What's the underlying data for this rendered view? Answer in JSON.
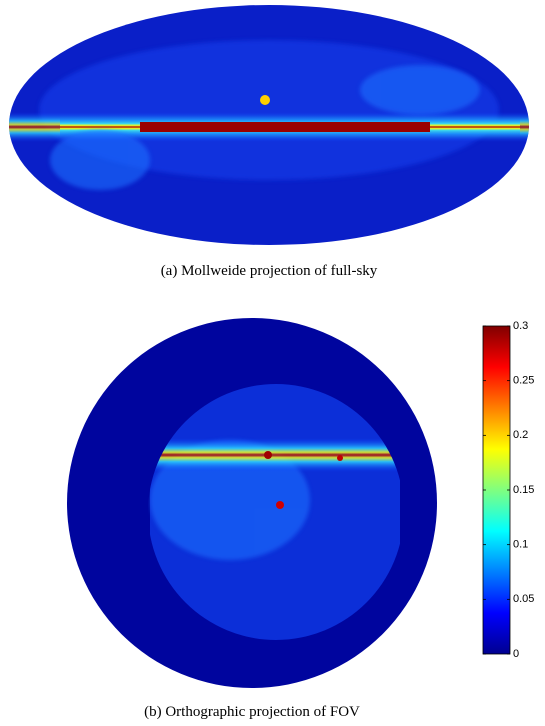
{
  "figures": [
    {
      "caption": "(a)  Mollweide projection of full-sky"
    },
    {
      "caption": "(b)  Orthographic projection of FOV"
    }
  ],
  "colorbar": {
    "ylim": [
      0,
      0.3
    ],
    "yticks": [
      0,
      0.05,
      0.1,
      0.15,
      0.2,
      0.25,
      0.3
    ]
  }
}
